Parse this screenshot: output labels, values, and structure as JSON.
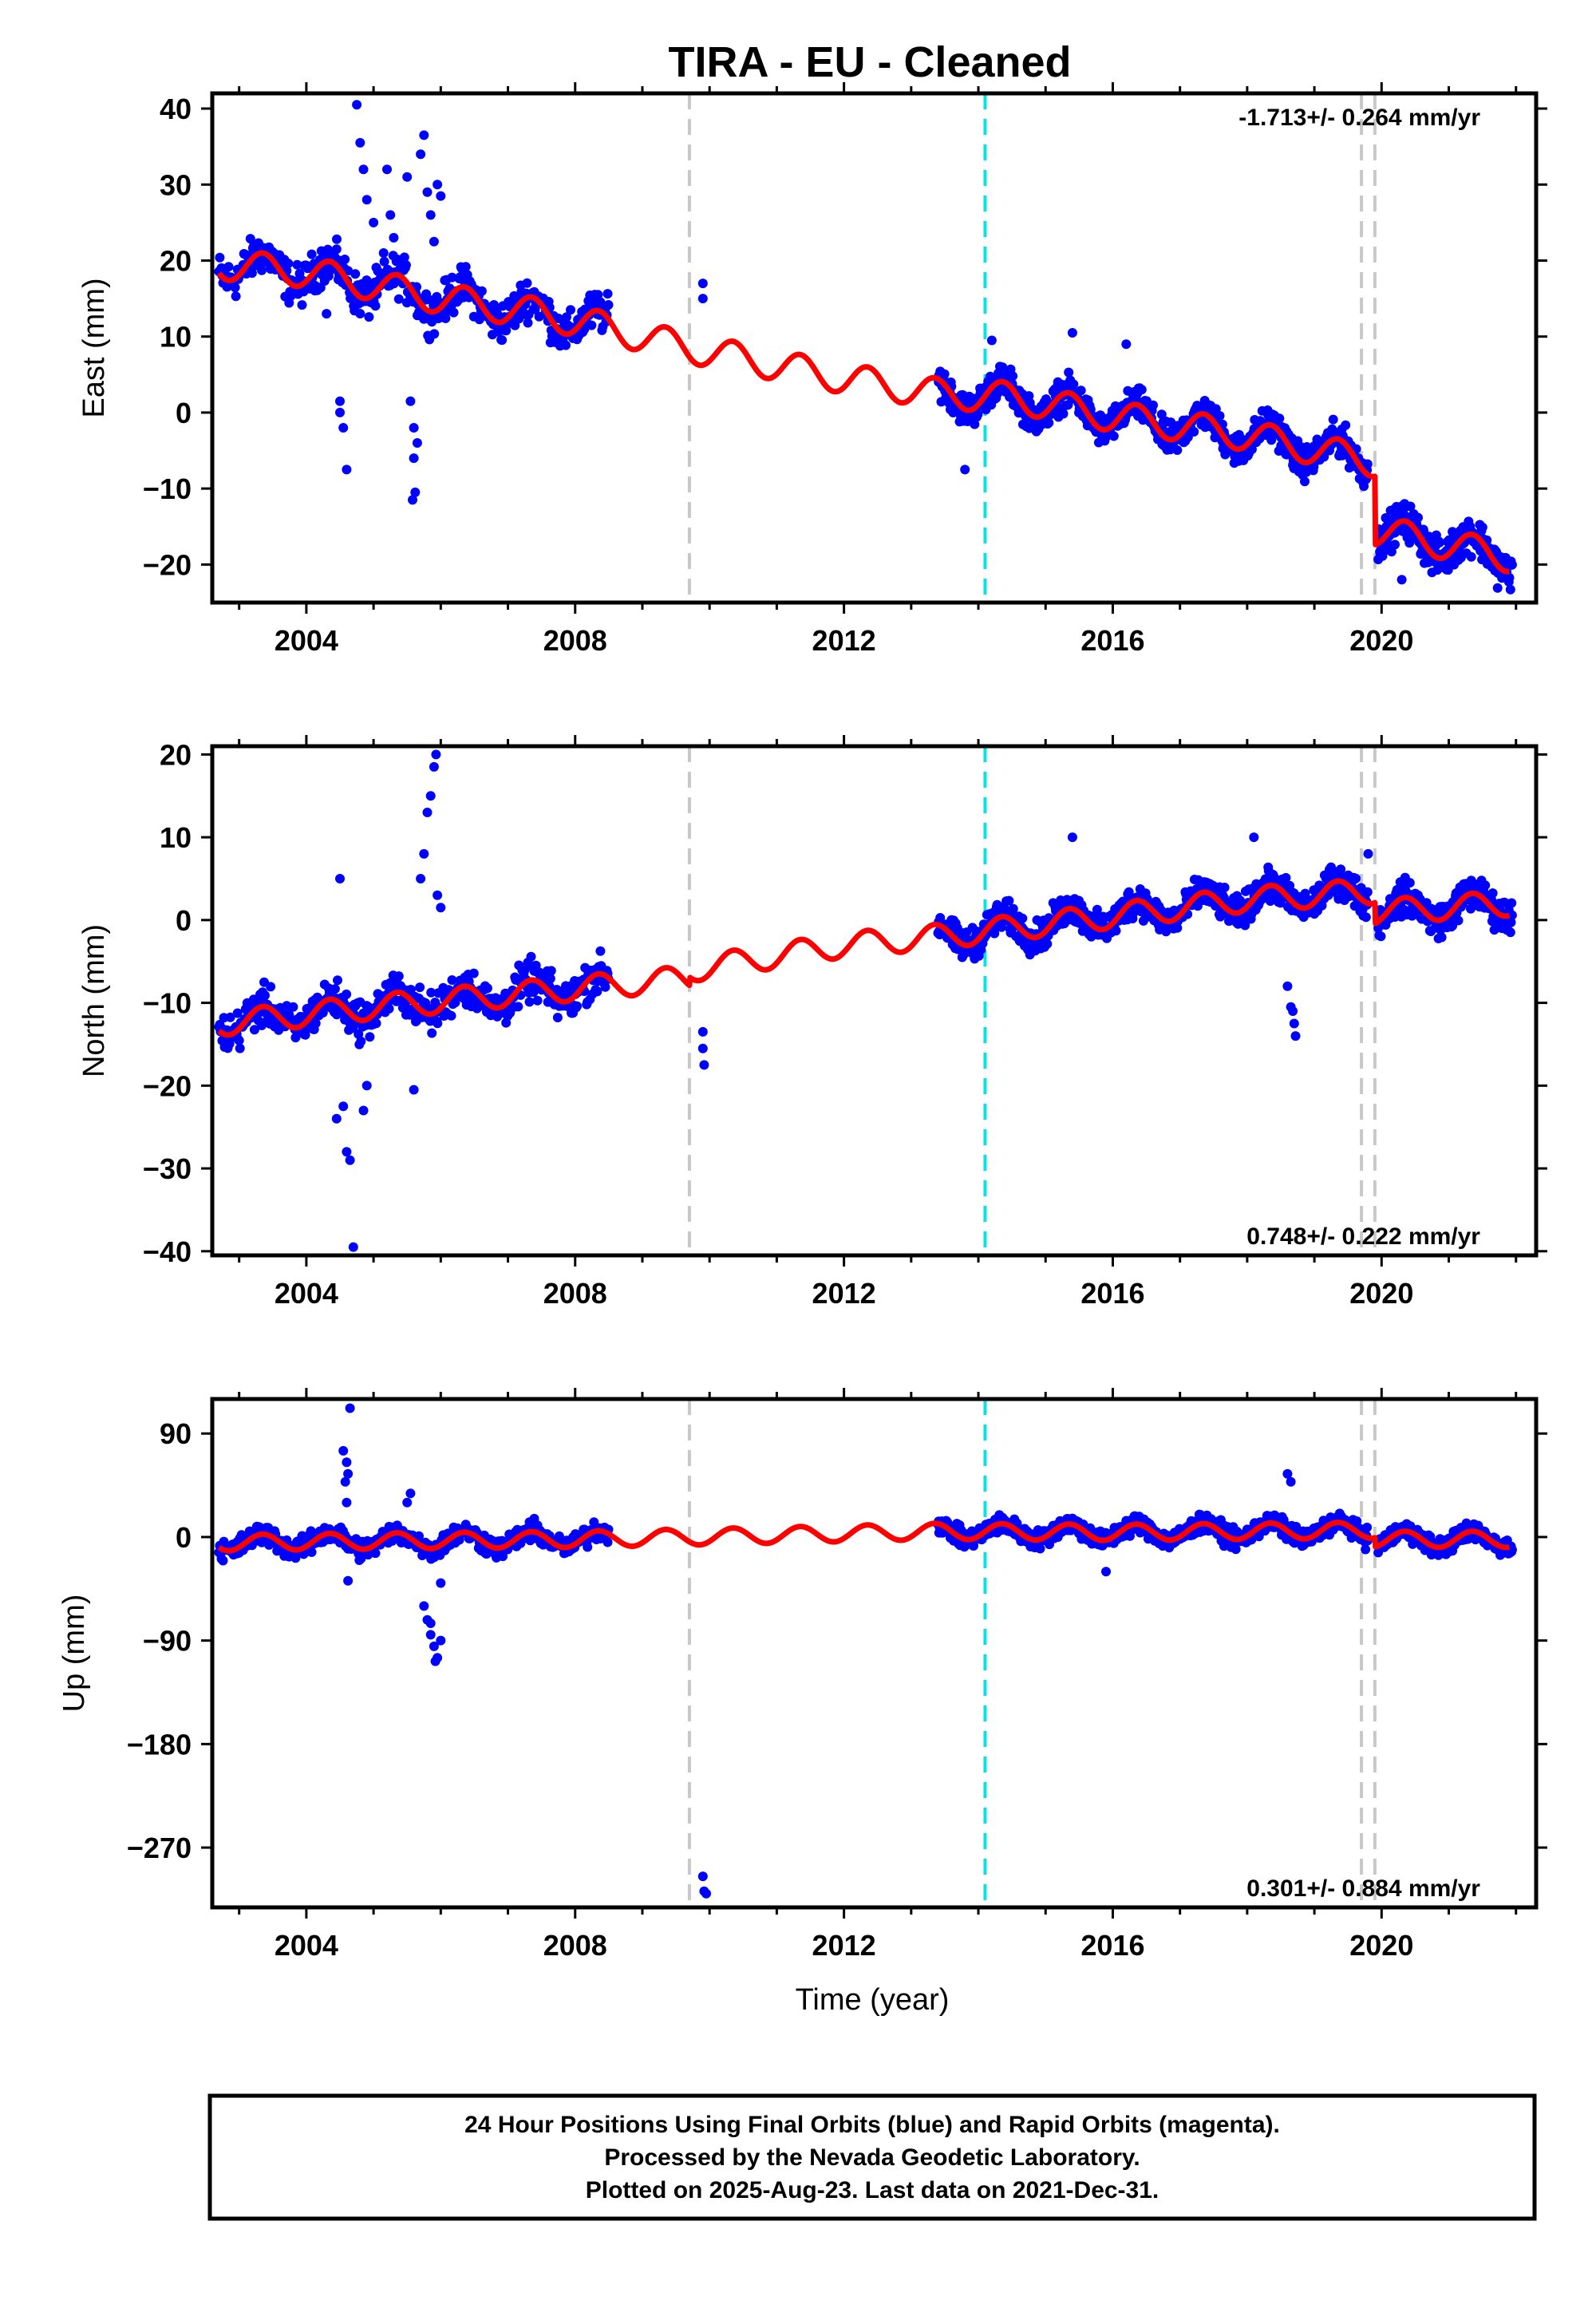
{
  "title": "TIRA  - EU - Cleaned",
  "x_axis_label": "Time (year)",
  "footer": {
    "line1": "24 Hour Positions Using Final Orbits (blue) and Rapid Orbits (magenta).",
    "line2": "Processed by the Nevada Geodetic Laboratory.",
    "line3": "Plotted on 2025-Aug-23. Last data on 2021-Dec-31."
  },
  "colors": {
    "points": "#0000ff",
    "model": "#ff0000",
    "gray_lines": "#c8c8c8",
    "cyan_line": "#00e5e5"
  },
  "chart_data": [
    {
      "type": "scatter",
      "name": "east",
      "ylabel": "East (mm)",
      "rate": "-1.713+/- 0.264 mm/yr",
      "rate_position": "top-right",
      "xlim": [
        2002.6,
        2022.3
      ],
      "ylim": [
        -25,
        42
      ],
      "xticks": [
        2004,
        2008,
        2012,
        2016,
        2020
      ],
      "yticks": [
        40,
        30,
        20,
        10,
        0,
        -10,
        -20
      ],
      "ytick_labels": [
        "40",
        "30",
        "20",
        "10",
        "0",
        "−10",
        "−20"
      ],
      "gray_lines_x": [
        2009.7,
        2019.7,
        2019.9
      ],
      "cyan_lines_x": [
        2014.1
      ],
      "model": {
        "base": [
          [
            2002.7,
            19.5
          ],
          [
            2004.0,
            18.5
          ],
          [
            2006.0,
            15.0
          ],
          [
            2007.5,
            13.0
          ],
          [
            2008.3,
            11.5
          ],
          [
            2009.7,
            8.5
          ],
          [
            2012.0,
            4.5
          ],
          [
            2013.4,
            2.5
          ],
          [
            2014.5,
            2.0
          ],
          [
            2016.0,
            -0.5
          ],
          [
            2018.0,
            -3.0
          ],
          [
            2019.9,
            -6.5
          ],
          [
            2019.9,
            -15.5
          ],
          [
            2021.9,
            -19.0
          ]
        ],
        "amplitude": 2.0
      },
      "data_segments": [
        {
          "start": 2002.7,
          "end": 2008.5,
          "step": 0.012,
          "noise": 2.0
        },
        {
          "start": 2013.4,
          "end": 2019.8,
          "step": 0.008,
          "noise": 1.6
        },
        {
          "start": 2019.95,
          "end": 2021.95,
          "step": 0.008,
          "noise": 1.8
        }
      ],
      "outliers": [
        [
          2004.5,
          1.5
        ],
        [
          2004.5,
          0.0
        ],
        [
          2004.55,
          -2.0
        ],
        [
          2004.6,
          -7.5
        ],
        [
          2004.3,
          13.0
        ],
        [
          2004.45,
          21.5
        ],
        [
          2004.75,
          40.5
        ],
        [
          2004.8,
          35.5
        ],
        [
          2004.85,
          32.0
        ],
        [
          2005.0,
          25.0
        ],
        [
          2004.9,
          28.0
        ],
        [
          2005.2,
          32.0
        ],
        [
          2005.25,
          26.0
        ],
        [
          2005.3,
          23.0
        ],
        [
          2005.15,
          21.0
        ],
        [
          2005.55,
          1.5
        ],
        [
          2005.6,
          -2.0
        ],
        [
          2005.6,
          -6.0
        ],
        [
          2005.62,
          -10.5
        ],
        [
          2005.58,
          -11.5
        ],
        [
          2005.65,
          -4.0
        ],
        [
          2005.5,
          31.0
        ],
        [
          2005.7,
          34.0
        ],
        [
          2005.75,
          36.5
        ],
        [
          2005.8,
          29.0
        ],
        [
          2005.85,
          26.0
        ],
        [
          2005.9,
          22.5
        ],
        [
          2005.95,
          30.0
        ],
        [
          2006.0,
          28.5
        ],
        [
          2009.9,
          17.0
        ],
        [
          2009.9,
          15.0
        ],
        [
          2013.8,
          -7.5
        ],
        [
          2014.2,
          9.5
        ],
        [
          2015.4,
          10.5
        ],
        [
          2016.2,
          9.0
        ],
        [
          2020.3,
          -22.0
        ]
      ]
    },
    {
      "type": "scatter",
      "name": "north",
      "ylabel": "North (mm)",
      "rate": "0.748+/- 0.222 mm/yr",
      "rate_position": "bottom-right",
      "xlim": [
        2002.6,
        2022.3
      ],
      "ylim": [
        -40.5,
        21
      ],
      "xticks": [
        2004,
        2008,
        2012,
        2016,
        2020
      ],
      "yticks": [
        20,
        10,
        0,
        -10,
        -20,
        -30,
        -40
      ],
      "ytick_labels": [
        "20",
        "10",
        "0",
        "−10",
        "−20",
        "−30",
        "−40"
      ],
      "gray_lines_x": [
        2009.7,
        2019.7,
        2019.9
      ],
      "cyan_lines_x": [
        2014.1
      ],
      "model": {
        "base": [
          [
            2002.7,
            -12.5
          ],
          [
            2005.0,
            -10.5
          ],
          [
            2007.0,
            -9.0
          ],
          [
            2009.7,
            -7.0
          ],
          [
            2009.7,
            -6.0
          ],
          [
            2012.0,
            -3.0
          ],
          [
            2013.4,
            -2.0
          ],
          [
            2016.0,
            0.5
          ],
          [
            2018.0,
            2.5
          ],
          [
            2019.9,
            3.5
          ],
          [
            2019.9,
            1.0
          ],
          [
            2021.9,
            2.0
          ]
        ],
        "amplitude": 1.5
      },
      "data_segments": [
        {
          "start": 2002.7,
          "end": 2008.5,
          "step": 0.012,
          "noise": 1.8
        },
        {
          "start": 2013.4,
          "end": 2019.8,
          "step": 0.008,
          "noise": 1.4
        },
        {
          "start": 2019.95,
          "end": 2021.95,
          "step": 0.008,
          "noise": 1.5
        }
      ],
      "outliers": [
        [
          2004.5,
          5.0
        ],
        [
          2004.55,
          -22.5
        ],
        [
          2004.6,
          -28.0
        ],
        [
          2004.65,
          -29.0
        ],
        [
          2004.7,
          -39.5
        ],
        [
          2004.45,
          -24.0
        ],
        [
          2004.85,
          -23.0
        ],
        [
          2004.9,
          -20.0
        ],
        [
          2005.6,
          -20.5
        ],
        [
          2005.7,
          5.0
        ],
        [
          2005.75,
          8.0
        ],
        [
          2005.8,
          13.0
        ],
        [
          2005.85,
          15.0
        ],
        [
          2005.9,
          18.5
        ],
        [
          2005.93,
          20.0
        ],
        [
          2005.95,
          3.0
        ],
        [
          2006.0,
          1.5
        ],
        [
          2009.9,
          -13.5
        ],
        [
          2009.9,
          -15.5
        ],
        [
          2009.92,
          -17.5
        ],
        [
          2015.4,
          10.0
        ],
        [
          2018.1,
          10.0
        ],
        [
          2018.6,
          -8.0
        ],
        [
          2018.65,
          -10.5
        ],
        [
          2018.7,
          -12.5
        ],
        [
          2018.72,
          -14.0
        ],
        [
          2018.68,
          -11.0
        ],
        [
          2019.8,
          8.0
        ]
      ]
    },
    {
      "type": "scatter",
      "name": "up",
      "ylabel": "Up (mm)",
      "rate": "0.301+/- 0.884 mm/yr",
      "rate_position": "bottom-right",
      "xlim": [
        2002.6,
        2022.3
      ],
      "ylim": [
        -322,
        120
      ],
      "xticks": [
        2004,
        2008,
        2012,
        2016,
        2020
      ],
      "yticks": [
        90,
        0,
        -90,
        -180,
        -270
      ],
      "ytick_labels": [
        "90",
        "0",
        "−90",
        "−180",
        "−270"
      ],
      "gray_lines_x": [
        2009.7,
        2019.7,
        2019.9
      ],
      "cyan_lines_x": [
        2014.1
      ],
      "model": {
        "base": [
          [
            2002.7,
            -5.0
          ],
          [
            2004.0,
            -4.0
          ],
          [
            2006.0,
            -3.0
          ],
          [
            2008.0,
            -2.0
          ],
          [
            2009.7,
            0.0
          ],
          [
            2012.0,
            3.0
          ],
          [
            2013.4,
            5.0
          ],
          [
            2016.0,
            4.0
          ],
          [
            2018.0,
            5.0
          ],
          [
            2019.9,
            6.0
          ],
          [
            2019.9,
            -2.0
          ],
          [
            2021.9,
            -2.0
          ]
        ],
        "amplitude": 7.0
      },
      "data_segments": [
        {
          "start": 2002.7,
          "end": 2008.5,
          "step": 0.012,
          "noise": 7.0
        },
        {
          "start": 2013.4,
          "end": 2019.8,
          "step": 0.008,
          "noise": 6.0
        },
        {
          "start": 2019.95,
          "end": 2021.95,
          "step": 0.008,
          "noise": 6.0
        }
      ],
      "outliers": [
        [
          2004.55,
          75.0
        ],
        [
          2004.6,
          65.0
        ],
        [
          2004.62,
          55.0
        ],
        [
          2004.58,
          48.0
        ],
        [
          2004.65,
          112.0
        ],
        [
          2004.6,
          30.0
        ],
        [
          2004.62,
          -38.0
        ],
        [
          2005.55,
          38.0
        ],
        [
          2005.5,
          30.0
        ],
        [
          2005.75,
          -60.0
        ],
        [
          2005.8,
          -72.0
        ],
        [
          2005.85,
          -85.0
        ],
        [
          2005.9,
          -95.0
        ],
        [
          2005.95,
          -105.0
        ],
        [
          2005.92,
          -108.0
        ],
        [
          2006.0,
          -90.0
        ],
        [
          2005.85,
          -75.0
        ],
        [
          2006.0,
          -40.0
        ],
        [
          2009.9,
          -295.0
        ],
        [
          2009.92,
          -308.0
        ],
        [
          2009.95,
          -310.0
        ],
        [
          2015.9,
          -30.0
        ],
        [
          2018.6,
          55.0
        ],
        [
          2018.65,
          48.0
        ]
      ]
    }
  ]
}
